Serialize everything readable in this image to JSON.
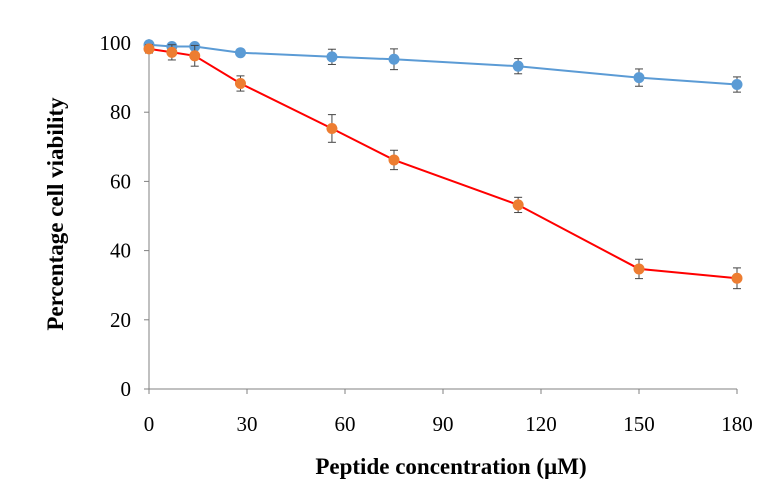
{
  "chart_data": {
    "type": "line",
    "title": "",
    "xlabel": "Peptide concentration (µM)",
    "ylabel": "Percentage cell viability",
    "xlim": [
      0,
      180
    ],
    "ylim": [
      0,
      100
    ],
    "xticks": [
      0,
      30,
      60,
      90,
      120,
      150,
      180
    ],
    "yticks": [
      0,
      20,
      40,
      60,
      80,
      100
    ],
    "grid": false,
    "legend": "none",
    "series": [
      {
        "color": "#5b9bd5",
        "line_color": "#5b9bd5",
        "x": [
          0,
          7,
          14,
          28,
          56,
          75,
          113,
          150,
          180
        ],
        "y": [
          99.5,
          99,
          99,
          97.2,
          96,
          95.3,
          93.3,
          90,
          88
        ],
        "err": [
          0.8,
          0.8,
          0.8,
          0.8,
          2.2,
          3.0,
          2.2,
          2.5,
          2.2
        ]
      },
      {
        "color": "#ed7d31",
        "line_color": "#ff0000",
        "x": [
          0,
          7,
          14,
          28,
          56,
          75,
          113,
          150,
          180
        ],
        "y": [
          98.3,
          97.3,
          96.3,
          88.3,
          75.3,
          66.2,
          53.2,
          34.7,
          32
        ],
        "err": [
          1.2,
          2.2,
          3.0,
          2.2,
          4.0,
          2.8,
          2.2,
          2.8,
          3.0
        ]
      }
    ]
  }
}
